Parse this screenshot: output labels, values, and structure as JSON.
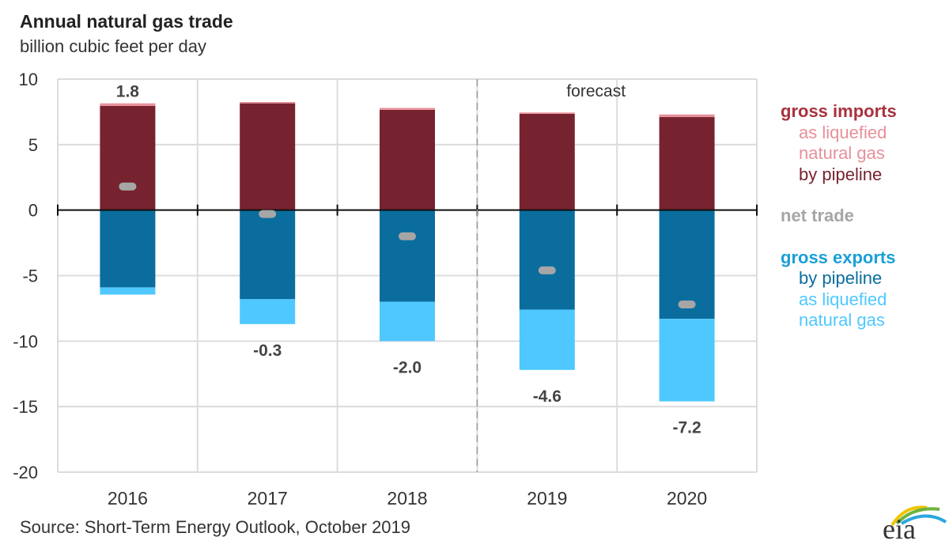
{
  "header": {
    "title": "Annual natural gas trade",
    "subtitle": "billion cubic feet per day"
  },
  "footer": {
    "source": "Source: Short-Term Energy Outlook, October 2019",
    "logo_text": "eia"
  },
  "legend": {
    "imports_header": "gross imports",
    "imports_lng_1": "as liquefied",
    "imports_lng_2": "natural gas",
    "imports_pipeline": "by pipeline",
    "net_trade": "net trade",
    "exports_header": "gross exports",
    "exports_pipeline": "by pipeline",
    "exports_lng_1": "as liquefied",
    "exports_lng_2": "natural gas"
  },
  "colors": {
    "imports_header": "#a8323e",
    "imports_lng": "#e8909a",
    "imports_pipeline": "#77232f",
    "net_trade": "#a6a6a6",
    "exports_header": "#1a9fd6",
    "exports_pipeline": "#0a6d9e",
    "exports_lng": "#4fc8ff"
  },
  "chart_data": {
    "type": "bar",
    "stacked": true,
    "title": "Annual natural gas trade",
    "subtitle": "billion cubic feet per day",
    "xlabel": "",
    "ylabel": "billion cubic feet per day",
    "categories": [
      "2016",
      "2017",
      "2018",
      "2019",
      "2020"
    ],
    "ylim": [
      -20,
      10
    ],
    "yticks": [
      10,
      5,
      0,
      -5,
      -10,
      -15,
      -20
    ],
    "grid": true,
    "legend_position": "right",
    "annotations": [
      {
        "text": "forecast",
        "after_category": "2018"
      }
    ],
    "series": [
      {
        "name": "gross imports by pipeline",
        "values": [
          7.95,
          8.15,
          7.65,
          7.35,
          7.1
        ]
      },
      {
        "name": "gross imports as liquefied natural gas",
        "values": [
          0.2,
          0.1,
          0.15,
          0.1,
          0.2
        ]
      },
      {
        "name": "gross exports by pipeline",
        "values": [
          -5.9,
          -6.8,
          -7.0,
          -7.6,
          -8.3
        ]
      },
      {
        "name": "gross exports as liquefied natural gas",
        "values": [
          -0.55,
          -1.9,
          -3.0,
          -4.6,
          -6.3
        ]
      },
      {
        "name": "net trade",
        "values": [
          1.8,
          -0.3,
          -2.0,
          -4.6,
          -7.2
        ],
        "labels": [
          "1.8",
          "-0.3",
          "-2.0",
          "-4.6",
          "-7.2"
        ]
      }
    ]
  }
}
